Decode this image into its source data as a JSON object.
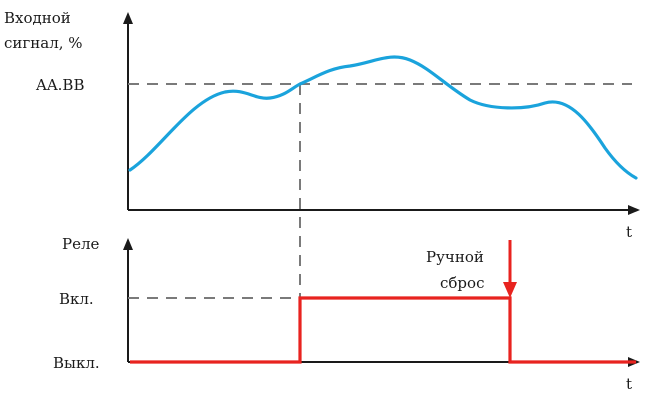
{
  "top_chart": {
    "ylabel_line1": "Входной",
    "ylabel_line2": "сигнал, %",
    "threshold_label": "AA.BB",
    "xlabel": "t"
  },
  "bottom_chart": {
    "ylabel": "Реле",
    "on_label": "Вкл.",
    "off_label": "Выкл.",
    "reset_line1": "Ручной",
    "reset_line2": "сброс",
    "xlabel": "t"
  },
  "colors": {
    "signal": "#1aa3dc",
    "relay": "#e8231f",
    "dashed": "#7a7a7a",
    "axis": "#1a1a1a"
  }
}
